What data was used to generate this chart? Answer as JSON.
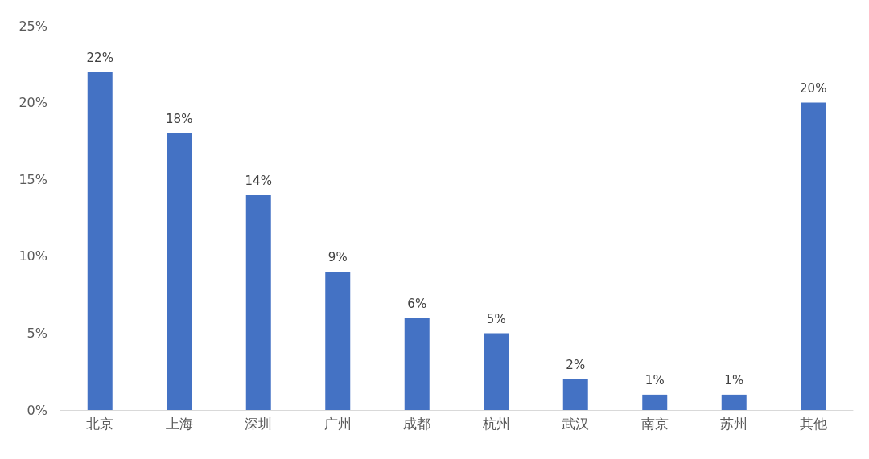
{
  "chart_data": {
    "type": "bar",
    "categories": [
      "北京",
      "上海",
      "深圳",
      "广州",
      "成都",
      "杭州",
      "武汉",
      "南京",
      "苏州",
      "其他"
    ],
    "values": [
      22,
      18,
      14,
      9,
      6,
      5,
      2,
      1,
      1,
      20
    ],
    "value_labels": [
      "22%",
      "18%",
      "14%",
      "9%",
      "6%",
      "5%",
      "2%",
      "1%",
      "1%",
      "20%"
    ],
    "color": "#4472c4",
    "ylim": [
      0,
      25
    ],
    "yticks": [
      {
        "value": 0,
        "label": "0%"
      },
      {
        "value": 5,
        "label": "5%"
      },
      {
        "value": 10,
        "label": "10%"
      },
      {
        "value": 15,
        "label": "15%"
      },
      {
        "value": 20,
        "label": "20%"
      },
      {
        "value": 25,
        "label": "25%"
      }
    ],
    "grid": false
  }
}
